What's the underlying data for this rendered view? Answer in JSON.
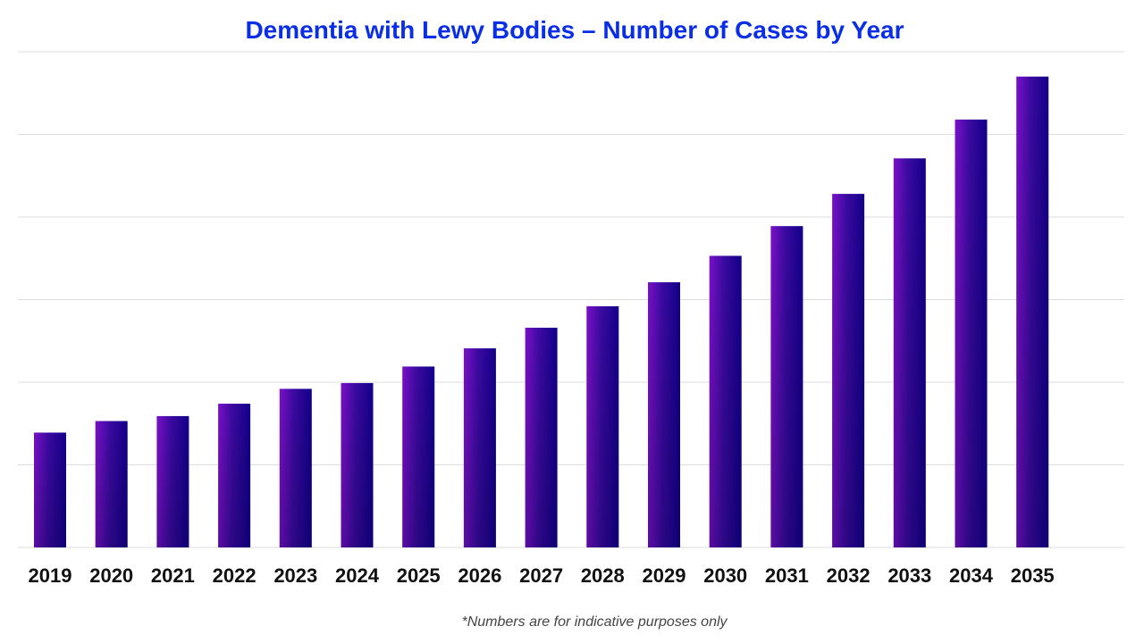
{
  "chart_data": {
    "type": "bar",
    "title": "Dementia with Lewy Bodies – Number of Cases by Year",
    "footnote": "*Numbers are for indicative purposes only",
    "categories": [
      "2019",
      "2020",
      "2021",
      "2022",
      "2023",
      "2024",
      "2025",
      "2026",
      "2027",
      "2028",
      "2029",
      "2030",
      "2031",
      "2032",
      "2033",
      "2034",
      "2035"
    ],
    "values": [
      1.39,
      1.53,
      1.59,
      1.74,
      1.92,
      1.99,
      2.19,
      2.41,
      2.66,
      2.92,
      3.21,
      3.53,
      3.89,
      4.28,
      4.71,
      5.18,
      5.7
    ],
    "value_units": "relative (gridline steps; no y-axis labels shown)",
    "ylim": [
      0,
      6
    ],
    "grid": true,
    "legend": "none",
    "colors": {
      "bar_light": "#7a10c8",
      "bar_dark": "#12008a",
      "title": "#0a2ee6",
      "grid": "#dcdcdc"
    }
  }
}
